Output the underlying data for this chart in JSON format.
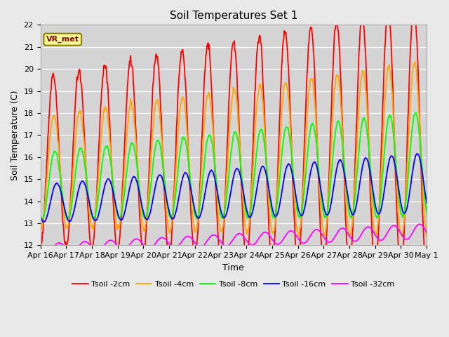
{
  "title": "Soil Temperatures Set 1",
  "xlabel": "Time",
  "ylabel": "Soil Temperature (C)",
  "ylim": [
    12.0,
    22.0
  ],
  "yticks": [
    12.0,
    13.0,
    14.0,
    15.0,
    16.0,
    17.0,
    18.0,
    19.0,
    20.0,
    21.0,
    22.0
  ],
  "xtick_labels": [
    "Apr 16",
    "Apr 17",
    "Apr 18",
    "Apr 19",
    "Apr 20",
    "Apr 21",
    "Apr 22",
    "Apr 23",
    "Apr 24",
    "Apr 25",
    "Apr 26",
    "Apr 27",
    "Apr 28",
    "Apr 29",
    "Apr 30",
    "May 1"
  ],
  "series_colors": [
    "red",
    "orange",
    "lime",
    "blue",
    "magenta"
  ],
  "series_labels": [
    "Tsoil -2cm",
    "Tsoil -4cm",
    "Tsoil -8cm",
    "Tsoil -16cm",
    "Tsoil -32cm"
  ],
  "annotation_text": "VR_met",
  "annotation_bg": "#ffff99",
  "annotation_border": "#8B8000",
  "fig_bg": "#e8e8e8",
  "plot_bg": "#d4d4d4",
  "linewidth": 1.3,
  "title_fontsize": 11,
  "label_fontsize": 9,
  "tick_fontsize": 8,
  "legend_fontsize": 8
}
